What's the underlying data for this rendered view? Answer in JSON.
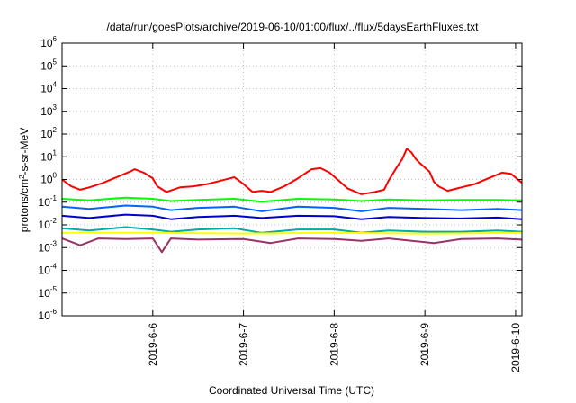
{
  "chart_data": {
    "type": "line",
    "title": "/data/run/goesPlots/archive/2019-06-10/01:00/flux/../flux/5daysEarthFluxes.txt",
    "xlabel": "Coordinated Universal Time (UTC)",
    "ylabel": {
      "base": "protons/cm",
      "sup": "2",
      "rest": "-s-sr-MeV"
    },
    "y_scale": "log",
    "ylim_exponent": [
      -6,
      6
    ],
    "xlim_days": [
      0,
      5.07
    ],
    "grid": true,
    "x_ticks": [
      {
        "label": "2019-6-6",
        "t": 1.0
      },
      {
        "label": "2019-6-7",
        "t": 2.0
      },
      {
        "label": "2019-6-8",
        "t": 3.0
      },
      {
        "label": "2019-6-9",
        "t": 4.0
      },
      {
        "label": "2019-6-10",
        "t": 5.0
      }
    ],
    "y_ticks": [
      {
        "base": "10",
        "exp": "6",
        "e": 6
      },
      {
        "base": "10",
        "exp": "5",
        "e": 5
      },
      {
        "base": "10",
        "exp": "4",
        "e": 4
      },
      {
        "base": "10",
        "exp": "3",
        "e": 3
      },
      {
        "base": "10",
        "exp": "2",
        "e": 2
      },
      {
        "base": "10",
        "exp": "1",
        "e": 1
      },
      {
        "base": "10",
        "exp": "0",
        "e": 0
      },
      {
        "base": "10",
        "exp": "-1",
        "e": -1
      },
      {
        "base": "10",
        "exp": "-2",
        "e": -2
      },
      {
        "base": "10",
        "exp": "-3",
        "e": -3
      },
      {
        "base": "10",
        "exp": "-4",
        "e": -4
      },
      {
        "base": "10",
        "exp": "-5",
        "e": -5
      },
      {
        "base": "10",
        "exp": "-6",
        "e": -6
      }
    ],
    "series": [
      {
        "color": "#ff0000",
        "points": [
          [
            0,
            0.0
          ],
          [
            0.1,
            -0.3
          ],
          [
            0.2,
            -0.45
          ],
          [
            0.3,
            -0.35
          ],
          [
            0.45,
            -0.15
          ],
          [
            0.6,
            0.1
          ],
          [
            0.75,
            0.35
          ],
          [
            0.8,
            0.45
          ],
          [
            0.9,
            0.3
          ],
          [
            1.0,
            0.05
          ],
          [
            1.05,
            -0.3
          ],
          [
            1.15,
            -0.55
          ],
          [
            1.3,
            -0.35
          ],
          [
            1.45,
            -0.3
          ],
          [
            1.6,
            -0.2
          ],
          [
            1.75,
            -0.05
          ],
          [
            1.9,
            0.1
          ],
          [
            2.0,
            -0.2
          ],
          [
            2.1,
            -0.55
          ],
          [
            2.2,
            -0.5
          ],
          [
            2.3,
            -0.55
          ],
          [
            2.45,
            -0.3
          ],
          [
            2.6,
            0.05
          ],
          [
            2.75,
            0.45
          ],
          [
            2.85,
            0.5
          ],
          [
            2.95,
            0.3
          ],
          [
            3.05,
            -0.05
          ],
          [
            3.15,
            -0.4
          ],
          [
            3.3,
            -0.65
          ],
          [
            3.45,
            -0.55
          ],
          [
            3.55,
            -0.45
          ],
          [
            3.6,
            -0.05
          ],
          [
            3.7,
            0.6
          ],
          [
            3.75,
            0.9
          ],
          [
            3.8,
            1.35
          ],
          [
            3.85,
            1.2
          ],
          [
            3.9,
            0.9
          ],
          [
            3.95,
            0.7
          ],
          [
            4.05,
            0.35
          ],
          [
            4.1,
            -0.1
          ],
          [
            4.15,
            -0.3
          ],
          [
            4.25,
            -0.5
          ],
          [
            4.4,
            -0.35
          ],
          [
            4.55,
            -0.2
          ],
          [
            4.7,
            0.05
          ],
          [
            4.85,
            0.3
          ],
          [
            4.95,
            0.25
          ],
          [
            5.07,
            -0.15
          ]
        ]
      },
      {
        "color": "#00ff00",
        "points": [
          [
            0,
            -0.85
          ],
          [
            0.3,
            -0.92
          ],
          [
            0.7,
            -0.8
          ],
          [
            1.0,
            -0.85
          ],
          [
            1.2,
            -0.95
          ],
          [
            1.5,
            -0.9
          ],
          [
            1.9,
            -0.85
          ],
          [
            2.2,
            -0.98
          ],
          [
            2.6,
            -0.85
          ],
          [
            3.0,
            -0.88
          ],
          [
            3.3,
            -0.95
          ],
          [
            3.6,
            -0.88
          ],
          [
            4.0,
            -0.92
          ],
          [
            4.4,
            -0.9
          ],
          [
            4.8,
            -0.9
          ],
          [
            5.07,
            -0.92
          ]
        ]
      },
      {
        "color": "#0066ff",
        "points": [
          [
            0,
            -1.2
          ],
          [
            0.3,
            -1.3
          ],
          [
            0.7,
            -1.15
          ],
          [
            1.0,
            -1.2
          ],
          [
            1.2,
            -1.35
          ],
          [
            1.5,
            -1.25
          ],
          [
            1.9,
            -1.2
          ],
          [
            2.2,
            -1.4
          ],
          [
            2.6,
            -1.2
          ],
          [
            3.0,
            -1.25
          ],
          [
            3.3,
            -1.4
          ],
          [
            3.6,
            -1.25
          ],
          [
            4.0,
            -1.3
          ],
          [
            4.4,
            -1.35
          ],
          [
            4.8,
            -1.3
          ],
          [
            5.07,
            -1.35
          ]
        ]
      },
      {
        "color": "#0000cc",
        "points": [
          [
            0,
            -1.6
          ],
          [
            0.3,
            -1.7
          ],
          [
            0.7,
            -1.55
          ],
          [
            1.0,
            -1.6
          ],
          [
            1.2,
            -1.75
          ],
          [
            1.5,
            -1.65
          ],
          [
            1.9,
            -1.6
          ],
          [
            2.2,
            -1.7
          ],
          [
            2.6,
            -1.6
          ],
          [
            3.0,
            -1.62
          ],
          [
            3.3,
            -1.75
          ],
          [
            3.6,
            -1.65
          ],
          [
            4.0,
            -1.7
          ],
          [
            4.4,
            -1.72
          ],
          [
            4.8,
            -1.68
          ],
          [
            5.07,
            -1.75
          ]
        ]
      },
      {
        "color": "#00aaaa",
        "points": [
          [
            0,
            -2.15
          ],
          [
            0.3,
            -2.25
          ],
          [
            0.7,
            -2.1
          ],
          [
            1.0,
            -2.2
          ],
          [
            1.2,
            -2.3
          ],
          [
            1.5,
            -2.2
          ],
          [
            1.9,
            -2.15
          ],
          [
            2.2,
            -2.35
          ],
          [
            2.6,
            -2.2
          ],
          [
            3.0,
            -2.2
          ],
          [
            3.3,
            -2.35
          ],
          [
            3.6,
            -2.25
          ],
          [
            4.0,
            -2.3
          ],
          [
            4.4,
            -2.3
          ],
          [
            4.8,
            -2.25
          ],
          [
            5.07,
            -2.3
          ]
        ]
      },
      {
        "color": "#ffff00",
        "points": [
          [
            0,
            -2.35
          ],
          [
            1.0,
            -2.35
          ],
          [
            2.0,
            -2.38
          ],
          [
            3.0,
            -2.35
          ],
          [
            4.0,
            -2.38
          ],
          [
            5.07,
            -2.35
          ]
        ]
      },
      {
        "color": "#993366",
        "points": [
          [
            0,
            -2.6
          ],
          [
            0.2,
            -2.9
          ],
          [
            0.4,
            -2.6
          ],
          [
            0.7,
            -2.62
          ],
          [
            1.0,
            -2.6
          ],
          [
            1.1,
            -3.2
          ],
          [
            1.2,
            -2.6
          ],
          [
            1.5,
            -2.65
          ],
          [
            2.0,
            -2.62
          ],
          [
            2.3,
            -2.8
          ],
          [
            2.6,
            -2.6
          ],
          [
            3.0,
            -2.62
          ],
          [
            3.3,
            -2.7
          ],
          [
            3.6,
            -2.6
          ],
          [
            4.1,
            -2.8
          ],
          [
            4.4,
            -2.62
          ],
          [
            4.8,
            -2.6
          ],
          [
            5.07,
            -2.65
          ]
        ]
      }
    ]
  }
}
